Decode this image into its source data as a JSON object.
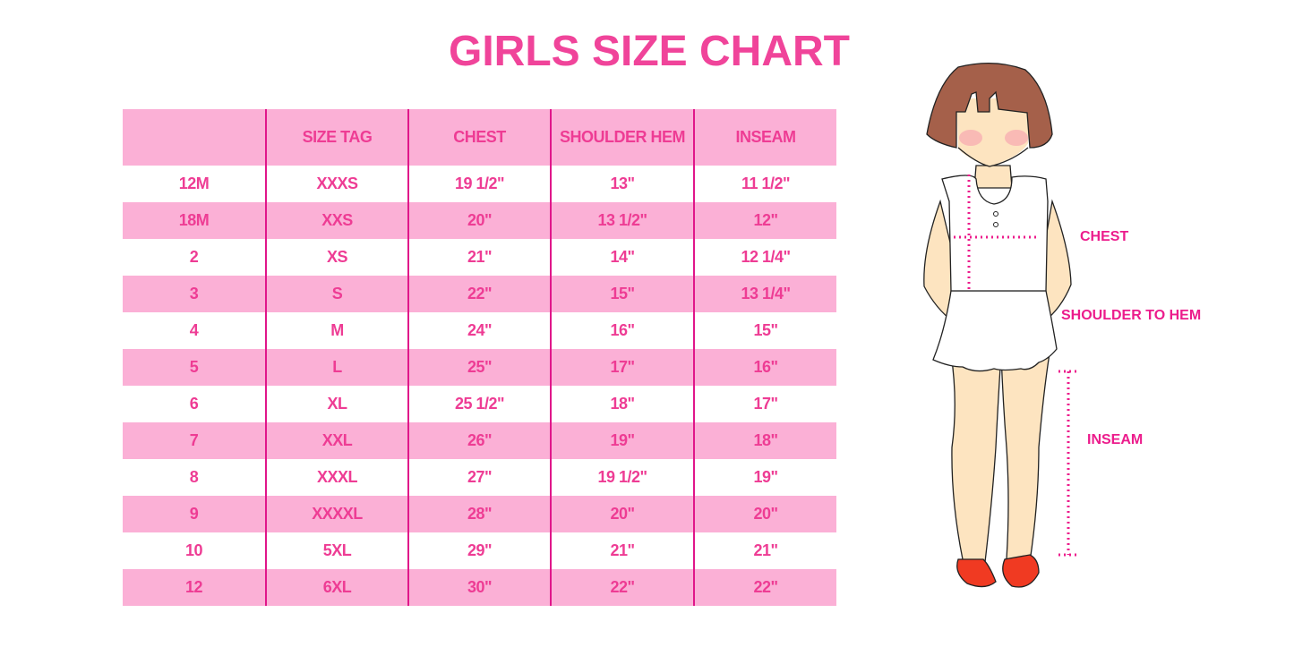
{
  "title": "GIRLS SIZE CHART",
  "table": {
    "headers": [
      "",
      "SIZE TAG",
      "CHEST",
      "SHOULDER HEM",
      "INSEAM"
    ],
    "rows": [
      [
        "12M",
        "XXXS",
        "19 1/2\"",
        "13\"",
        "11 1/2\""
      ],
      [
        "18M",
        "XXS",
        "20\"",
        "13 1/2\"",
        "12\""
      ],
      [
        "2",
        "XS",
        "21\"",
        "14\"",
        "12 1/4\""
      ],
      [
        "3",
        "S",
        "22\"",
        "15\"",
        "13 1/4\""
      ],
      [
        "4",
        "M",
        "24\"",
        "16\"",
        "15\""
      ],
      [
        "5",
        "L",
        "25\"",
        "17\"",
        "16\""
      ],
      [
        "6",
        "XL",
        "25 1/2\"",
        "18\"",
        "17\""
      ],
      [
        "7",
        "XXL",
        "26\"",
        "19\"",
        "18\""
      ],
      [
        "8",
        "XXXL",
        "27\"",
        "19 1/2\"",
        "19\""
      ],
      [
        "9",
        "XXXXL",
        "28\"",
        "20\"",
        "20\""
      ],
      [
        "10",
        "5XL",
        "29\"",
        "21\"",
        "21\""
      ],
      [
        "12",
        "6XL",
        "30\"",
        "22\"",
        "22\""
      ]
    ]
  },
  "illustration": {
    "labels": {
      "chest": "CHEST",
      "shoulder_to_hem": "SHOULDER TO HEM",
      "inseam": "INSEAM"
    }
  },
  "colors": {
    "accent": "#ee3c94",
    "row_pink": "#fbb0d6",
    "divider": "#e0168a"
  }
}
